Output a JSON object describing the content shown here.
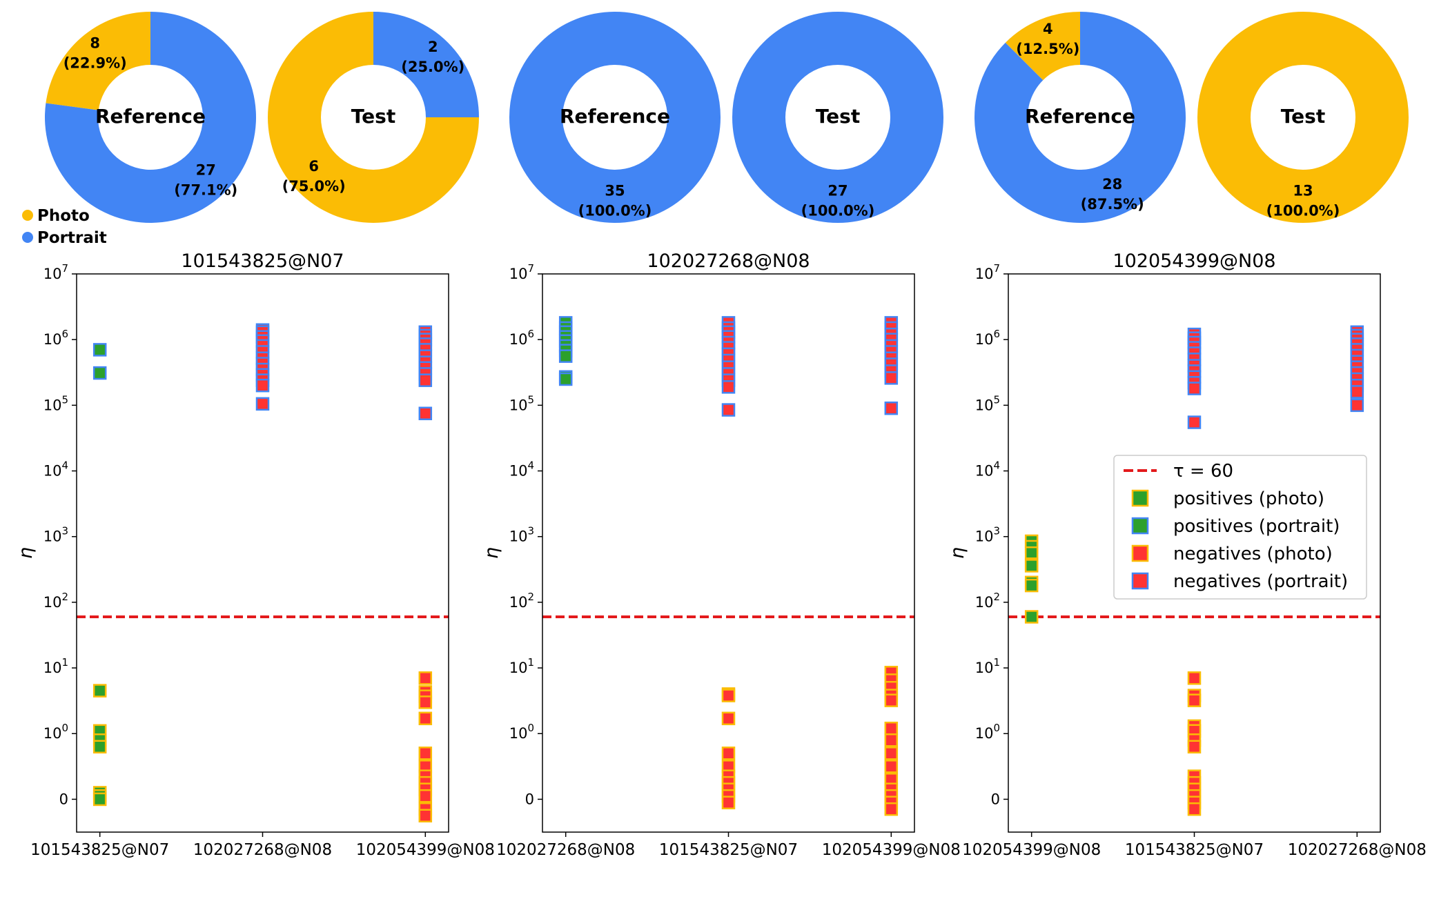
{
  "colors": {
    "photo": "#FBBC05",
    "portrait": "#4285F4",
    "positive_fill": "#2CA02C",
    "negative_fill": "#FF3333",
    "threshold": "#E31A1C"
  },
  "donut_legend": {
    "photo_label": "Photo",
    "portrait_label": "Portrait"
  },
  "scatter_legend": {
    "threshold": "τ = 60",
    "pos_photo": "positives (photo)",
    "pos_portrait": "positives (portrait)",
    "neg_photo": "negatives (photo)",
    "neg_portrait": "negatives (portrait)"
  },
  "chart_data": [
    {
      "type": "pie",
      "subtype": "donut",
      "title": "Reference",
      "group": "101543825@N07",
      "slices": [
        {
          "name": "Photo",
          "value": 8,
          "label": "8\n(22.9%)"
        },
        {
          "name": "Portrait",
          "value": 27,
          "label": "27\n(77.1%)"
        }
      ]
    },
    {
      "type": "pie",
      "subtype": "donut",
      "title": "Test",
      "group": "101543825@N07",
      "slices": [
        {
          "name": "Photo",
          "value": 6,
          "label": "6\n(75.0%)"
        },
        {
          "name": "Portrait",
          "value": 2,
          "label": "2\n(25.0%)"
        }
      ]
    },
    {
      "type": "pie",
      "subtype": "donut",
      "title": "Reference",
      "group": "102027268@N08",
      "slices": [
        {
          "name": "Photo",
          "value": 0,
          "label": ""
        },
        {
          "name": "Portrait",
          "value": 35,
          "label": "35\n(100.0%)"
        }
      ]
    },
    {
      "type": "pie",
      "subtype": "donut",
      "title": "Test",
      "group": "102027268@N08",
      "slices": [
        {
          "name": "Photo",
          "value": 0,
          "label": ""
        },
        {
          "name": "Portrait",
          "value": 27,
          "label": "27\n(100.0%)"
        }
      ]
    },
    {
      "type": "pie",
      "subtype": "donut",
      "title": "Reference",
      "group": "102054399@N08",
      "slices": [
        {
          "name": "Photo",
          "value": 4,
          "label": "4\n(12.5%)"
        },
        {
          "name": "Portrait",
          "value": 28,
          "label": "28\n(87.5%)"
        }
      ]
    },
    {
      "type": "pie",
      "subtype": "donut",
      "title": "Test",
      "group": "102054399@N08",
      "slices": [
        {
          "name": "Photo",
          "value": 13,
          "label": "13\n(100.0%)"
        },
        {
          "name": "Portrait",
          "value": 0,
          "label": ""
        }
      ]
    },
    {
      "type": "scatter",
      "title": "101543825@N07",
      "ylabel": "η",
      "yscale": "symlog",
      "ylim": [
        -0.5,
        10000000
      ],
      "threshold": 60,
      "yticks": [
        "10^7",
        "10^6",
        "10^5",
        "10^4",
        "10^3",
        "10^2",
        "10^1",
        "10^0",
        "0"
      ],
      "categories": [
        "101543825@N07",
        "102027268@N08",
        "102054399@N08"
      ],
      "points": [
        {
          "cat": 0,
          "group": "positives (photo)",
          "y": [
            4.5,
            1.1,
            0.9,
            0.8,
            0.1,
            0.05,
            0.0
          ]
        },
        {
          "cat": 0,
          "group": "positives (portrait)",
          "y": [
            700000,
            310000
          ]
        },
        {
          "cat": 1,
          "group": "negatives (portrait)",
          "y": [
            1400000,
            1300000,
            1100000,
            950000,
            800000,
            650000,
            520000,
            430000,
            350000,
            290000,
            240000,
            200000,
            105000
          ]
        },
        {
          "cat": 2,
          "group": "negatives (photo)",
          "y": [
            7,
            4.3,
            3.7,
            3.0,
            1.7,
            0.7,
            0.5,
            0.35,
            0.25,
            0.15,
            0.05,
            -0.15,
            -0.25
          ]
        },
        {
          "cat": 2,
          "group": "negatives (portrait)",
          "y": [
            1300000,
            1150000,
            1000000,
            850000,
            700000,
            560000,
            450000,
            370000,
            300000,
            240000,
            75000
          ]
        }
      ]
    },
    {
      "type": "scatter",
      "title": "102027268@N08",
      "ylabel": "η",
      "yscale": "symlog",
      "ylim": [
        -0.5,
        10000000
      ],
      "threshold": 60,
      "yticks": [
        "10^7",
        "10^6",
        "10^5",
        "10^4",
        "10^3",
        "10^2",
        "10^1",
        "10^0",
        "0"
      ],
      "categories": [
        "102027268@N08",
        "101543825@N07",
        "102054399@N08"
      ],
      "points": [
        {
          "cat": 0,
          "group": "positives (portrait)",
          "y": [
            1800000,
            1500000,
            1300000,
            1100000,
            950000,
            800000,
            680000,
            560000,
            270000,
            250000
          ]
        },
        {
          "cat": 1,
          "group": "negatives (photo)",
          "y": [
            4.0,
            3.8,
            1.7,
            0.7,
            0.5,
            0.35,
            0.25,
            0.15,
            0.05,
            -0.05
          ]
        },
        {
          "cat": 1,
          "group": "negatives (portrait)",
          "y": [
            1800000,
            1500000,
            1300000,
            1100000,
            900000,
            750000,
            600000,
            480000,
            380000,
            300000,
            240000,
            190000,
            85000
          ]
        },
        {
          "cat": 2,
          "group": "negatives (photo)",
          "y": [
            8.5,
            6.5,
            5.0,
            3.8,
            3.2,
            1.2,
            0.9,
            0.7,
            0.5,
            0.3,
            0.15,
            0.05,
            -0.05,
            -0.15
          ]
        },
        {
          "cat": 2,
          "group": "negatives (portrait)",
          "y": [
            1800000,
            1500000,
            1200000,
            1000000,
            800000,
            650000,
            520000,
            420000,
            330000,
            260000,
            90000
          ]
        }
      ]
    },
    {
      "type": "scatter",
      "title": "102054399@N08",
      "ylabel": "η",
      "yscale": "symlog",
      "ylim": [
        -0.5,
        10000000
      ],
      "threshold": 60,
      "yticks": [
        "10^7",
        "10^6",
        "10^5",
        "10^4",
        "10^3",
        "10^2",
        "10^1",
        "10^0",
        "0"
      ],
      "categories": [
        "102054399@N08",
        "101543825@N07",
        "102027268@N08"
      ],
      "points": [
        {
          "cat": 0,
          "group": "positives (photo)",
          "y": [
            850,
            700,
            560,
            380,
            360,
            200,
            180,
            60
          ]
        },
        {
          "cat": 1,
          "group": "negatives (photo)",
          "y": [
            7,
            3.8,
            3.2,
            1.3,
            1.1,
            0.9,
            0.8,
            0.35,
            0.25,
            0.15,
            0.05,
            -0.05,
            -0.15
          ]
        },
        {
          "cat": 1,
          "group": "negatives (portrait)",
          "y": [
            1200000,
            1050000,
            900000,
            750000,
            620000,
            500000,
            400000,
            330000,
            270000,
            220000,
            180000,
            55000
          ]
        },
        {
          "cat": 2,
          "group": "negatives (portrait)",
          "y": [
            1300000,
            1150000,
            1000000,
            850000,
            700000,
            570000,
            460000,
            380000,
            310000,
            250000,
            200000,
            160000,
            100000
          ]
        }
      ]
    }
  ]
}
